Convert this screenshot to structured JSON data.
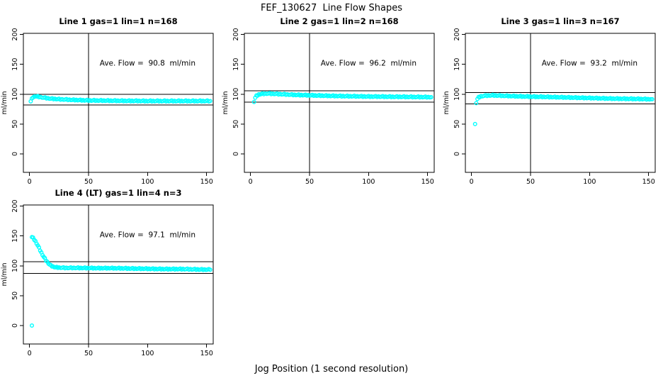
{
  "figure": {
    "title": "FEF_130627  Line Flow Shapes",
    "xlabel": "Jog Position (1 second resolution)",
    "ylabel": "ml/min",
    "background_color": "#ffffff",
    "point_color": "#00ffff",
    "axis_color": "#000000"
  },
  "chart_data": [
    {
      "type": "scatter",
      "title": "Line 1 gas=1 lin=1 n=168",
      "n": 168,
      "ave_flow": 90.8,
      "ave_flow_label": "Ave. Flow =  90.8  ml/min",
      "ylabel": "ml/min",
      "xlim": [
        -5,
        161
      ],
      "ylim": [
        -31,
        202
      ],
      "xticks": [
        0,
        50,
        100,
        150
      ],
      "yticks": [
        0,
        50,
        100,
        150,
        200
      ],
      "ref_vline_x": 50,
      "ref_hlines": [
        99.9,
        81.7
      ],
      "marker": "open-circle",
      "band_points": [
        [
          1,
          88
        ],
        [
          2,
          92
        ],
        [
          3,
          95
        ],
        [
          5,
          96.5
        ],
        [
          8,
          95.5
        ],
        [
          12,
          94
        ],
        [
          18,
          92.5
        ],
        [
          25,
          91.5
        ],
        [
          35,
          90.5
        ],
        [
          50,
          89.5
        ],
        [
          70,
          89
        ],
        [
          100,
          88.5
        ],
        [
          130,
          88.5
        ],
        [
          153,
          88.5
        ]
      ],
      "outliers": []
    },
    {
      "type": "scatter",
      "title": "Line 2 gas=1 lin=2 n=168",
      "n": 168,
      "ave_flow": 96.2,
      "ave_flow_label": "Ave. Flow =  96.2  ml/min",
      "ylabel": "ml/min",
      "xlim": [
        -5,
        161
      ],
      "ylim": [
        -31,
        202
      ],
      "xticks": [
        0,
        50,
        100,
        150
      ],
      "yticks": [
        0,
        50,
        100,
        150,
        200
      ],
      "ref_vline_x": 50,
      "ref_hlines": [
        105.8,
        86.6
      ],
      "marker": "open-circle",
      "band_points": [
        [
          4,
          94
        ],
        [
          5,
          97
        ],
        [
          7,
          99.5
        ],
        [
          10,
          100.5
        ],
        [
          15,
          101
        ],
        [
          25,
          100
        ],
        [
          35,
          99
        ],
        [
          50,
          98
        ],
        [
          70,
          97
        ],
        [
          100,
          96
        ],
        [
          130,
          95.5
        ],
        [
          153,
          95
        ]
      ],
      "outliers": [
        [
          3,
          87
        ]
      ]
    },
    {
      "type": "scatter",
      "title": "Line 3 gas=1 lin=3 n=167",
      "n": 167,
      "ave_flow": 93.2,
      "ave_flow_label": "Ave. Flow =  93.2  ml/min",
      "ylabel": "ml/min",
      "xlim": [
        -5,
        161
      ],
      "ylim": [
        -31,
        202
      ],
      "xticks": [
        0,
        50,
        100,
        150
      ],
      "yticks": [
        0,
        50,
        100,
        150,
        200
      ],
      "ref_vline_x": 50,
      "ref_hlines": [
        102.5,
        83.9
      ],
      "marker": "open-circle",
      "band_points": [
        [
          5,
          92
        ],
        [
          6,
          94.5
        ],
        [
          8,
          96.5
        ],
        [
          12,
          97.5
        ],
        [
          18,
          98
        ],
        [
          30,
          97
        ],
        [
          45,
          96
        ],
        [
          60,
          95.5
        ],
        [
          80,
          94.5
        ],
        [
          100,
          93.5
        ],
        [
          120,
          92.5
        ],
        [
          140,
          92
        ],
        [
          153,
          91.5
        ]
      ],
      "outliers": [
        [
          3,
          50
        ],
        [
          4,
          85
        ]
      ]
    },
    {
      "type": "scatter",
      "title": "Line 4 (LT) gas=1 lin=4 n=3",
      "n": 3,
      "ave_flow": 97.1,
      "ave_flow_label": "Ave. Flow =  97.1  ml/min",
      "ylabel": "ml/min",
      "xlim": [
        -5,
        161
      ],
      "ylim": [
        -31,
        202
      ],
      "xticks": [
        0,
        50,
        100,
        150
      ],
      "yticks": [
        0,
        50,
        100,
        150,
        200
      ],
      "ref_vline_x": 50,
      "ref_hlines": [
        106.8,
        87.4
      ],
      "marker": "open-circle",
      "band_points": [
        [
          2,
          148
        ],
        [
          3,
          146.5
        ],
        [
          4,
          144
        ],
        [
          5,
          141
        ],
        [
          6,
          137.5
        ],
        [
          7,
          134
        ],
        [
          8,
          130
        ],
        [
          9,
          126
        ],
        [
          10,
          122
        ],
        [
          11,
          118.5
        ],
        [
          12,
          115
        ],
        [
          13,
          112
        ],
        [
          14,
          109
        ],
        [
          15,
          106.5
        ],
        [
          16,
          104
        ],
        [
          17,
          102
        ],
        [
          18,
          100.5
        ],
        [
          19,
          99.5
        ],
        [
          20,
          98.5
        ],
        [
          22,
          97.5
        ],
        [
          25,
          97
        ],
        [
          30,
          96.5
        ],
        [
          40,
          96.5
        ],
        [
          55,
          96
        ],
        [
          70,
          96
        ],
        [
          85,
          95.5
        ],
        [
          100,
          95
        ],
        [
          115,
          94.5
        ],
        [
          130,
          94.5
        ],
        [
          140,
          94
        ],
        [
          153,
          93.5
        ]
      ],
      "outliers": [
        [
          2,
          0
        ]
      ]
    }
  ]
}
